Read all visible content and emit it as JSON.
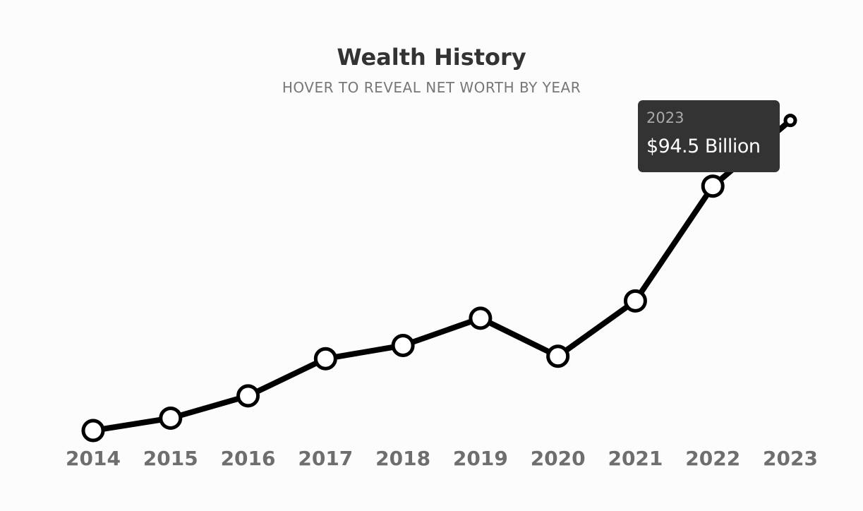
{
  "header": {
    "title": "Wealth History",
    "subtitle": "HOVER TO REVEAL NET WORTH BY YEAR"
  },
  "tooltip": {
    "year": "2023",
    "value": "$94.5 Billion"
  },
  "colors": {
    "line": "#000000",
    "marker_fill": "#ffffff",
    "tooltip_bg": "#333333",
    "title": "#333333",
    "subtitle": "#777777",
    "tick": "#6e6e6e"
  },
  "chart_data": {
    "type": "line",
    "title": "Wealth History",
    "subtitle": "HOVER TO REVEAL NET WORTH BY YEAR",
    "xlabel": "",
    "ylabel": "",
    "categories": [
      "2014",
      "2015",
      "2016",
      "2017",
      "2018",
      "2019",
      "2020",
      "2021",
      "2022",
      "2023"
    ],
    "series": [
      {
        "values": [
          19.4,
          22.4,
          27.8,
          36.8,
          40.0,
          46.6,
          37.4,
          50.8,
          78.6,
          94.5
        ]
      }
    ],
    "ylim": [
      10,
      110
    ],
    "grid": false,
    "legend": "none",
    "highlighted_index": 9
  }
}
